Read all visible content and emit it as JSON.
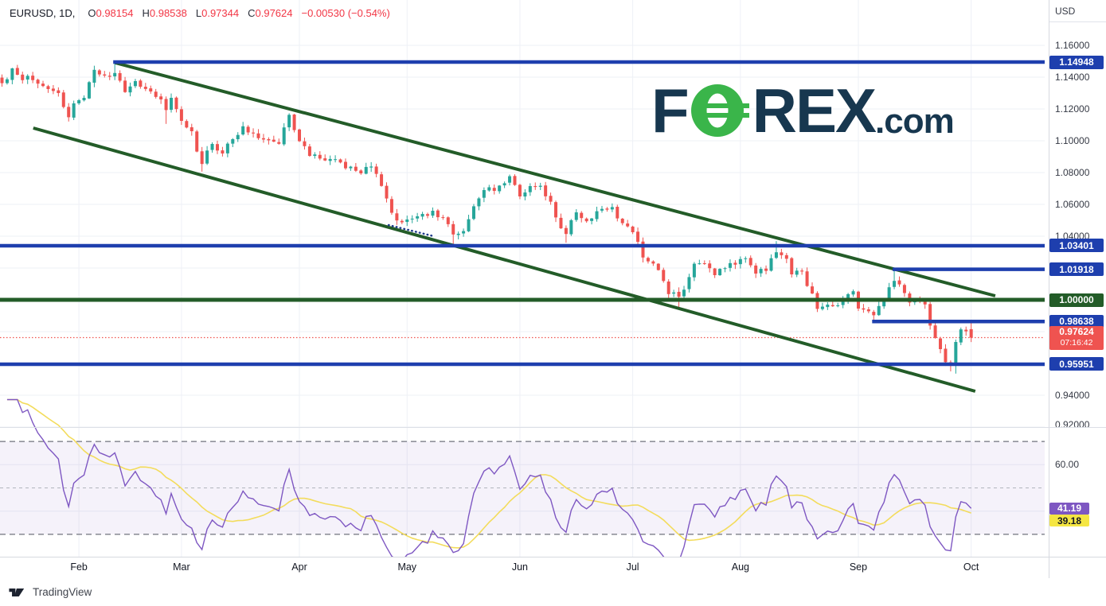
{
  "header": {
    "title": "EURUSD, 1D,",
    "ohlc": [
      {
        "label": "O",
        "value": "0.98154"
      },
      {
        "label": "H",
        "value": "0.98538"
      },
      {
        "label": "L",
        "value": "0.97344"
      },
      {
        "label": "C",
        "value": "0.97624"
      }
    ],
    "change": "−0.00530 (−0.54%)"
  },
  "watermark": {
    "f": "F",
    "rex": "REX",
    "com": ".com"
  },
  "price_axis": {
    "currency": "USD",
    "ticks": [
      {
        "label": "1.16000",
        "price": 1.16
      },
      {
        "label": "1.14000",
        "price": 1.14
      },
      {
        "label": "1.12000",
        "price": 1.12
      },
      {
        "label": "1.10000",
        "price": 1.1
      },
      {
        "label": "1.08000",
        "price": 1.08
      },
      {
        "label": "1.06000",
        "price": 1.06
      },
      {
        "label": "1.04000",
        "price": 1.04
      },
      {
        "label": "0.94000",
        "price": 0.94
      },
      {
        "label": "0.92000",
        "price": 0.92
      }
    ],
    "level_badges": [
      {
        "label": "1.14948",
        "price": 1.14948,
        "color": "blue"
      },
      {
        "label": "1.03401",
        "price": 1.03401,
        "color": "blue"
      },
      {
        "label": "1.01918",
        "price": 1.01918,
        "color": "blue"
      },
      {
        "label": "1.00000",
        "price": 1.0,
        "color": "green"
      },
      {
        "label": "0.98638",
        "price": 0.98638,
        "color": "blue"
      },
      {
        "label": "0.95951",
        "price": 0.95951,
        "color": "blue"
      }
    ],
    "price_badge": {
      "label": "0.97624",
      "countdown": "07:16:42",
      "price": 0.97624
    }
  },
  "rsi_axis": {
    "ticks": [
      {
        "label": "60.00",
        "value": 60
      }
    ],
    "badges": [
      {
        "label": "41.19",
        "value": 41.19,
        "kind": "rsi"
      },
      {
        "label": "39.18",
        "value": 39.18,
        "kind": "ma"
      }
    ]
  },
  "time_axis": {
    "months": [
      {
        "label": "Feb",
        "idx": 15
      },
      {
        "label": "Mar",
        "idx": 35
      },
      {
        "label": "Apr",
        "idx": 58
      },
      {
        "label": "May",
        "idx": 79
      },
      {
        "label": "Jun",
        "idx": 101
      },
      {
        "label": "Jul",
        "idx": 123
      },
      {
        "label": "Aug",
        "idx": 144
      },
      {
        "label": "Sep",
        "idx": 167
      },
      {
        "label": "Oct",
        "idx": 189
      }
    ]
  },
  "footer": {
    "brand": "TradingView"
  },
  "colors": {
    "up": "#26a69a",
    "down": "#ef5350",
    "blue": "#1e3fae",
    "green": "#235c28",
    "red_dotted": "#f0544f",
    "red_badge": "#ef5350",
    "purple": "#7e57c2",
    "yellow_line": "#f3dc5c",
    "yellow_badge": "#f5e642",
    "band": "#7e57c2",
    "grid": "#eef0f6",
    "dash_strong": "#70737d",
    "dash_mid": "#b2b5bd",
    "navy_dot": "#1e3a8a",
    "logo_navy": "#17374f",
    "logo_green": "#3ab54a"
  },
  "chart_data": {
    "type": "candlestick",
    "symbol": "EURUSD",
    "interval": "1D",
    "price_scale": {
      "visible_min": 0.92,
      "visible_max": 1.16,
      "grid_step": 0.02
    },
    "levels": [
      {
        "price": 1.14948,
        "color": "blue",
        "from_idx": 22
      },
      {
        "price": 1.03401,
        "color": "blue",
        "from_idx": 0
      },
      {
        "price": 1.01918,
        "color": "blue",
        "from_idx": 174
      },
      {
        "price": 1.0,
        "color": "green",
        "from_idx": 0
      },
      {
        "price": 0.98638,
        "color": "blue",
        "from_idx": 170
      },
      {
        "price": 0.95951,
        "color": "blue",
        "from_idx": 0
      }
    ],
    "last_price_line": {
      "price": 0.97624,
      "style": "dotted"
    },
    "trendlines": [
      {
        "name": "channel-upper",
        "i1": 22.1,
        "p1": 1.149,
        "i2": 193.7,
        "p2": 1.0025,
        "style": "solid"
      },
      {
        "name": "channel-lower",
        "i1": 6.1,
        "p1": 1.108,
        "i2": 189.8,
        "p2": 0.9425,
        "style": "solid"
      },
      {
        "name": "dotted-segment",
        "i1": 75.4,
        "p1": 1.047,
        "i2": 84.2,
        "p2": 1.04,
        "style": "dotted"
      }
    ],
    "candles_keypoints": [
      [
        0,
        1.1362
      ],
      [
        2,
        1.1455
      ],
      [
        3,
        1.1415
      ],
      [
        8,
        1.1344
      ],
      [
        11,
        1.13
      ],
      [
        13,
        1.1148
      ],
      [
        14,
        1.1235
      ],
      [
        16,
        1.127
      ],
      [
        18,
        1.1446
      ],
      [
        20,
        1.141
      ],
      [
        22,
        1.1426
      ],
      [
        24,
        1.1306
      ],
      [
        26,
        1.1375
      ],
      [
        29,
        1.131
      ],
      [
        31,
        1.126
      ],
      [
        32,
        1.1193
      ],
      [
        33,
        1.127
      ],
      [
        35,
        1.1125
      ],
      [
        37,
        1.106
      ],
      [
        38,
        1.0932
      ],
      [
        39,
        1.0854
      ],
      [
        41,
        1.098
      ],
      [
        43,
        1.092
      ],
      [
        45,
        1.101
      ],
      [
        47,
        1.1091
      ],
      [
        49,
        1.1046
      ],
      [
        52,
        1.1003
      ],
      [
        54,
        1.0981
      ],
      [
        56,
        1.1163
      ],
      [
        57,
        1.1067
      ],
      [
        59,
        1.0966
      ],
      [
        60,
        1.0905
      ],
      [
        63,
        1.0876
      ],
      [
        65,
        1.0884
      ],
      [
        67,
        1.0827
      ],
      [
        70,
        1.0795
      ],
      [
        72,
        1.0838
      ],
      [
        74,
        1.0716
      ],
      [
        75,
        1.0637
      ],
      [
        77,
        1.0499
      ],
      [
        79,
        1.0505
      ],
      [
        82,
        1.054
      ],
      [
        84,
        1.056
      ],
      [
        86,
        1.0516
      ],
      [
        88,
        1.0411
      ],
      [
        90,
        1.0432
      ],
      [
        92,
        1.0588
      ],
      [
        94,
        1.069
      ],
      [
        96,
        1.0685
      ],
      [
        98,
        1.0733
      ],
      [
        99,
        1.0777
      ],
      [
        101,
        1.065
      ],
      [
        103,
        1.0715
      ],
      [
        105,
        1.0717
      ],
      [
        107,
        1.0617
      ],
      [
        108,
        1.0518
      ],
      [
        110,
        1.0414
      ],
      [
        112,
        1.055
      ],
      [
        114,
        1.0494
      ],
      [
        116,
        1.0557
      ],
      [
        119,
        1.0583
      ],
      [
        121,
        1.0482
      ],
      [
        123,
        1.0425
      ],
      [
        125,
        1.0266
      ],
      [
        128,
        1.0187
      ],
      [
        130,
        1.0036
      ],
      [
        132,
        1.0019
      ],
      [
        134,
        1.0143
      ],
      [
        135,
        1.0227
      ],
      [
        137,
        1.0229
      ],
      [
        139,
        1.0155
      ],
      [
        141,
        1.0199
      ],
      [
        143,
        1.0221
      ],
      [
        145,
        1.0261
      ],
      [
        147,
        1.0165
      ],
      [
        149,
        1.0182
      ],
      [
        151,
        1.0299
      ],
      [
        153,
        1.0258
      ],
      [
        154,
        1.016
      ],
      [
        156,
        1.0178
      ],
      [
        158,
        1.004
      ],
      [
        159,
        0.9943
      ],
      [
        161,
        0.997
      ],
      [
        163,
        0.9965
      ],
      [
        164,
        0.9997
      ],
      [
        166,
        1.0054
      ],
      [
        167,
        0.9945
      ],
      [
        169,
        0.9928
      ],
      [
        170,
        0.9903
      ],
      [
        172,
        0.9996
      ],
      [
        174,
        1.0119
      ],
      [
        175,
        1.0097
      ],
      [
        177,
        0.9983
      ],
      [
        178,
        0.9998
      ],
      [
        180,
        0.9971
      ],
      [
        181,
        0.9838
      ],
      [
        183,
        0.969
      ],
      [
        184,
        0.9608
      ],
      [
        185,
        0.9594
      ],
      [
        186,
        0.9735
      ],
      [
        187,
        0.9814
      ],
      [
        188,
        0.9802
      ],
      [
        189,
        0.97624
      ]
    ],
    "wick_overrides": {
      "13": {
        "l": 1.1121
      },
      "22": {
        "h": 1.14948
      },
      "32": {
        "l": 1.1106
      },
      "39": {
        "l": 1.0806
      },
      "77": {
        "l": 1.0471
      },
      "88": {
        "l": 1.035
      },
      "110": {
        "l": 1.0359
      },
      "125": {
        "l": 1.0235
      },
      "132": {
        "l": 0.9952
      },
      "151": {
        "h": 1.0369
      },
      "170": {
        "l": 0.98638
      },
      "174": {
        "h": 1.01918
      },
      "181": {
        "l": 0.9813
      },
      "185": {
        "l": 0.955
      },
      "186": {
        "l": 0.9536
      }
    },
    "last_candle": {
      "o": 0.98154,
      "h": 0.98538,
      "l": 0.97344,
      "c": 0.97624
    },
    "indicator": {
      "name": "RSI",
      "period": 14,
      "ma_period": 14,
      "overbought": 70,
      "midline": 50,
      "oversold": 30,
      "last": 41.19,
      "ma_last": 39.18
    }
  }
}
